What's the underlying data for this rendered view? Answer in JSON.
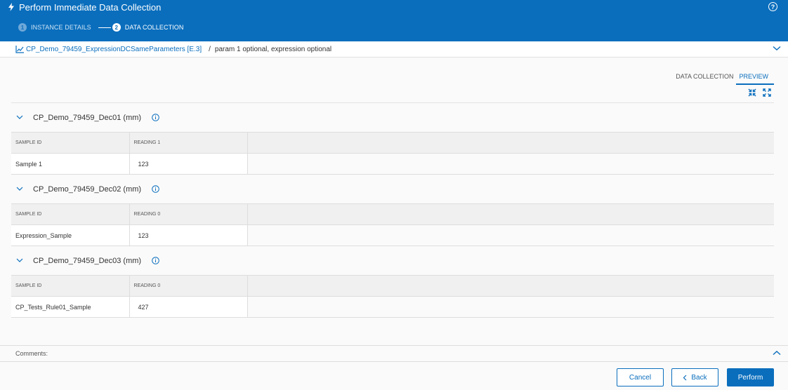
{
  "header": {
    "title": "Perform Immediate Data Collection",
    "help": "?",
    "steps": [
      {
        "number": "1",
        "label": "INSTANCE DETAILS"
      },
      {
        "number": "2",
        "label": "DATA COLLECTION"
      }
    ]
  },
  "breadcrumb": {
    "link": "CP_Demo_79459_ExpressionDCSameParameters [E.3]",
    "separator": "/",
    "detail": "param 1 optional, expression optional"
  },
  "tabs": [
    "DATA COLLECTION",
    "PREVIEW"
  ],
  "sections": [
    {
      "title": "CP_Demo_79459_Dec01 (mm)",
      "columns": [
        "SAMPLE ID",
        "READING 1"
      ],
      "rows": [
        {
          "sample_id": "Sample 1",
          "reading": "123"
        }
      ]
    },
    {
      "title": "CP_Demo_79459_Dec02 (mm)",
      "columns": [
        "SAMPLE ID",
        "READING 0"
      ],
      "rows": [
        {
          "sample_id": "Expression_Sample",
          "reading": "123"
        }
      ]
    },
    {
      "title": "CP_Demo_79459_Dec03 (mm)",
      "columns": [
        "SAMPLE ID",
        "READING 0"
      ],
      "rows": [
        {
          "sample_id": "CP_Tests_Rule01_Sample",
          "reading": "427"
        }
      ]
    }
  ],
  "comments": {
    "label": "Comments:"
  },
  "footer": {
    "cancel": "Cancel",
    "back": "Back",
    "perform": "Perform"
  },
  "colors": {
    "primary": "#0a6ebd",
    "header_bg": "#0a6ebd"
  },
  "icons": [
    "bolt-icon",
    "help-icon",
    "chart-icon",
    "chevron-down-icon",
    "collapse-icon",
    "expand-icon",
    "info-icon",
    "chevron-up-icon",
    "chevron-left-icon"
  ]
}
